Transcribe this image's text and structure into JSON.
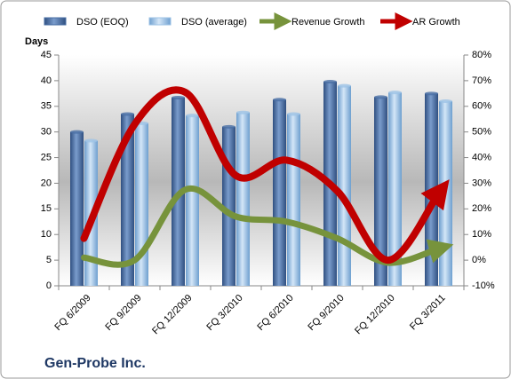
{
  "chart_data": {
    "type": "bar_line",
    "title": "Gen-Probe Inc.",
    "y_label": "Days",
    "categories": [
      "FQ 6/2009",
      "FQ 9/2009",
      "FQ 12/2009",
      "FQ 3/2010",
      "FQ 6/2010",
      "FQ 9/2010",
      "FQ 12/2010",
      "FQ 3/2011"
    ],
    "series": [
      {
        "name": "DSO (EOQ)",
        "color": "#4a6fa5",
        "type": "bar",
        "values": [
          30,
          33.5,
          36.7,
          31,
          36.3,
          39.8,
          36.8,
          37.5
        ]
      },
      {
        "name": "DSO (average)",
        "color": "#9ec3e6",
        "type": "bar",
        "values": [
          28.3,
          31.7,
          33.2,
          33.8,
          33.5,
          39,
          37.7,
          36
        ]
      },
      {
        "name": "Revenue Growth",
        "color": "#77933c",
        "type": "line",
        "axis": "y2",
        "values": [
          1,
          0,
          27.5,
          17,
          15,
          8.5,
          -1,
          4.5
        ]
      },
      {
        "name": "AR Growth",
        "color": "#c00000",
        "type": "line",
        "axis": "y2",
        "values": [
          8.5,
          53,
          65.5,
          33,
          39,
          27,
          0,
          26
        ]
      }
    ],
    "ylim": [
      0,
      45
    ],
    "yticks": [
      0,
      5,
      10,
      15,
      20,
      25,
      30,
      35,
      40,
      45
    ],
    "y2lim": [
      -10,
      80
    ],
    "y2ticks": [
      {
        "value": -10,
        "label": "-10%"
      },
      {
        "value": 0,
        "label": "0%"
      },
      {
        "value": 10,
        "label": "10%"
      },
      {
        "value": 20,
        "label": "20%"
      },
      {
        "value": 30,
        "label": "30%"
      },
      {
        "value": 40,
        "label": "40%"
      },
      {
        "value": 50,
        "label": "50%"
      },
      {
        "value": 60,
        "label": "60%"
      },
      {
        "value": 70,
        "label": "70%"
      },
      {
        "value": 80,
        "label": "80%"
      }
    ],
    "grid": false,
    "legend": "top"
  }
}
